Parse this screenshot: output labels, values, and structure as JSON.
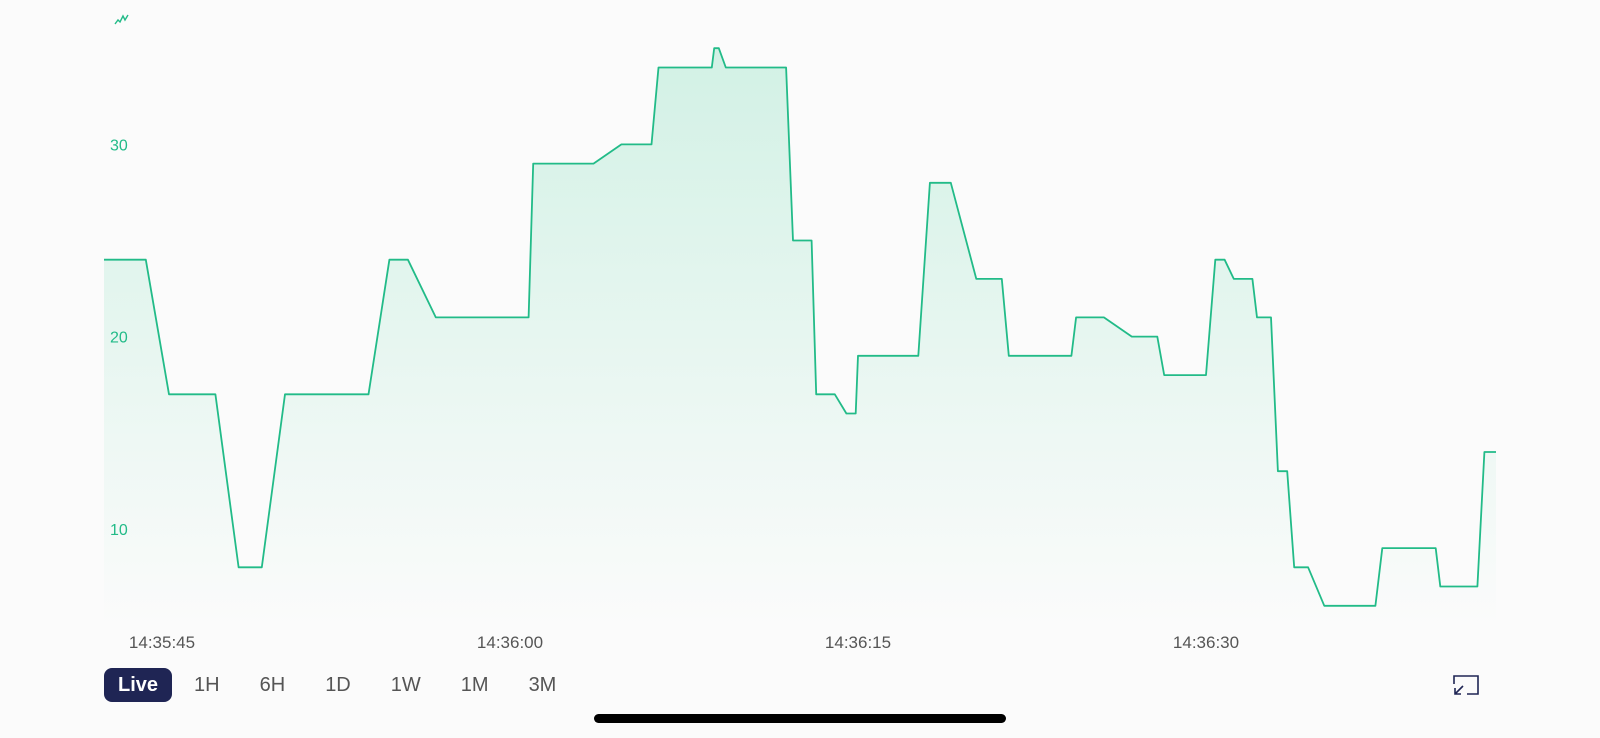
{
  "colors": {
    "line": "#22bb88",
    "fill_top": "#d2f1e5",
    "fill_bottom": "#fbfbfb",
    "active_range_bg": "#1f2554",
    "active_range_text": "#ffffff"
  },
  "icons": {
    "chart_type": "mini-line-chart-icon",
    "expand": "exit-fullscreen-icon"
  },
  "range_selector": {
    "options": [
      {
        "label": "Live",
        "active": true
      },
      {
        "label": "1H",
        "active": false
      },
      {
        "label": "6H",
        "active": false
      },
      {
        "label": "1D",
        "active": false
      },
      {
        "label": "1W",
        "active": false
      },
      {
        "label": "1M",
        "active": false
      },
      {
        "label": "3M",
        "active": false
      }
    ]
  },
  "chart_data": {
    "type": "area",
    "title": "",
    "xlabel": "",
    "ylabel": "",
    "grid": false,
    "ylim": [
      5,
      36
    ],
    "xlim": [
      "14:35:42.5",
      "14:36:42.5"
    ],
    "y_ticks": [
      10,
      20,
      30
    ],
    "x_ticks": [
      "14:35:45",
      "14:36:00",
      "14:36:15",
      "14:36:30"
    ],
    "series": [
      {
        "points": [
          [
            "14:35:42.5",
            24
          ],
          [
            "14:35:44.3",
            24
          ],
          [
            "14:35:45.3",
            17
          ],
          [
            "14:35:47.3",
            17
          ],
          [
            "14:35:48.3",
            8
          ],
          [
            "14:35:49.3",
            8
          ],
          [
            "14:35:50.3",
            17
          ],
          [
            "14:35:53.9",
            17
          ],
          [
            "14:35:54.8",
            24
          ],
          [
            "14:35:55.6",
            24
          ],
          [
            "14:35:56.8",
            21
          ],
          [
            "14:36:00.8",
            21
          ],
          [
            "14:36:01.0",
            29
          ],
          [
            "14:36:03.6",
            29
          ],
          [
            "14:36:04.8",
            30
          ],
          [
            "14:36:06.1",
            30
          ],
          [
            "14:36:06.4",
            34
          ],
          [
            "14:36:08.7",
            34
          ],
          [
            "14:36:08.8",
            35
          ],
          [
            "14:36:09.0",
            35
          ],
          [
            "14:36:09.3",
            34
          ],
          [
            "14:36:11.9",
            34
          ],
          [
            "14:36:12.2",
            25
          ],
          [
            "14:36:13.0",
            25
          ],
          [
            "14:36:13.2",
            17
          ],
          [
            "14:36:14.0",
            17
          ],
          [
            "14:36:14.5",
            16
          ],
          [
            "14:36:14.9",
            16
          ],
          [
            "14:36:15.0",
            19
          ],
          [
            "14:36:17.6",
            19
          ],
          [
            "14:36:18.1",
            28
          ],
          [
            "14:36:19.0",
            28
          ],
          [
            "14:36:20.1",
            23
          ],
          [
            "14:36:21.2",
            23
          ],
          [
            "14:36:21.5",
            19
          ],
          [
            "14:36:24.2",
            19
          ],
          [
            "14:36:24.4",
            21
          ],
          [
            "14:36:25.6",
            21
          ],
          [
            "14:36:26.8",
            20
          ],
          [
            "14:36:27.9",
            20
          ],
          [
            "14:36:28.2",
            18
          ],
          [
            "14:36:30.0",
            18
          ],
          [
            "14:36:30.4",
            24
          ],
          [
            "14:36:30.8",
            24
          ],
          [
            "14:36:31.2",
            23
          ],
          [
            "14:36:32.0",
            23
          ],
          [
            "14:36:32.2",
            21
          ],
          [
            "14:36:32.8",
            21
          ],
          [
            "14:36:33.1",
            13
          ],
          [
            "14:36:33.5",
            13
          ],
          [
            "14:36:33.8",
            8
          ],
          [
            "14:36:34.4",
            8
          ],
          [
            "14:36:35.1",
            6
          ],
          [
            "14:36:37.3",
            6
          ],
          [
            "14:36:37.6",
            9
          ],
          [
            "14:36:39.9",
            9
          ],
          [
            "14:36:40.1",
            7
          ],
          [
            "14:36:41.7",
            7
          ],
          [
            "14:36:42.0",
            14
          ],
          [
            "14:36:42.5",
            14
          ]
        ]
      }
    ]
  }
}
